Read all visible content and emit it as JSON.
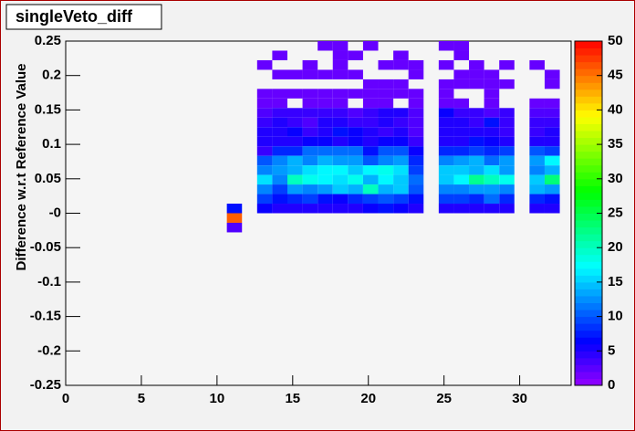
{
  "chart_data": {
    "type": "heatmap",
    "title": "singleVeto_diff",
    "y_label": "Difference w.r.t Reference Value",
    "xlim": [
      0,
      33.4
    ],
    "xticks": [
      0,
      5,
      10,
      15,
      20,
      25,
      30
    ],
    "ylim": [
      -0.25,
      0.25
    ],
    "yticks": [
      -0.25,
      -0.2,
      -0.15,
      -0.1,
      -0.05,
      {
        "value": 0,
        "label": "-0"
      },
      0.05,
      0.1,
      0.15,
      0.2,
      0.25
    ],
    "zlim": [
      0,
      50
    ],
    "zticks": [
      0,
      5,
      10,
      15,
      20,
      25,
      30,
      35,
      40,
      45,
      50
    ],
    "xbins": [
      10.65,
      11.65,
      12.65,
      13.65,
      14.65,
      15.65,
      16.65,
      17.65,
      18.65,
      19.65,
      20.65,
      21.65,
      22.65,
      23.65,
      24.65,
      25.65,
      26.65,
      27.65,
      28.65,
      29.65,
      30.65,
      31.65,
      32.65
    ],
    "ybins": [
      0.25,
      0.2361,
      0.2222,
      0.2083,
      0.1944,
      0.1806,
      0.1667,
      0.1528,
      0.1389,
      0.125,
      0.1111,
      0.0972,
      0.0833,
      0.0694,
      0.0556,
      0.0417,
      0.0278,
      0.0139,
      0,
      -0.0139,
      -0.0278
    ],
    "z": [
      [
        null,
        null,
        null,
        null,
        null,
        null,
        2,
        2,
        null,
        2,
        null,
        null,
        null,
        null,
        2,
        2,
        null,
        null,
        null,
        null,
        null,
        null
      ],
      [
        null,
        null,
        null,
        2,
        null,
        null,
        null,
        2,
        2,
        null,
        null,
        2,
        null,
        null,
        null,
        2,
        null,
        null,
        null,
        null,
        null,
        null
      ],
      [
        null,
        null,
        2,
        null,
        null,
        2,
        null,
        2,
        null,
        null,
        2,
        2,
        2,
        null,
        2,
        null,
        2,
        null,
        2,
        null,
        2,
        null
      ],
      [
        null,
        null,
        null,
        2,
        2,
        2,
        2,
        2,
        2,
        null,
        null,
        null,
        2,
        null,
        null,
        2,
        2,
        2,
        null,
        null,
        null,
        2
      ],
      [
        null,
        null,
        null,
        null,
        null,
        null,
        null,
        null,
        null,
        2,
        2,
        2,
        null,
        null,
        2,
        2,
        2,
        2,
        2,
        null,
        null,
        2
      ],
      [
        null,
        null,
        2,
        2,
        2,
        2,
        2,
        2,
        2,
        2,
        2,
        2,
        2,
        null,
        2,
        null,
        null,
        2,
        null,
        null,
        null,
        null
      ],
      [
        null,
        null,
        2,
        2,
        null,
        2,
        2,
        2,
        null,
        2,
        2,
        null,
        2,
        null,
        2,
        2,
        null,
        2,
        null,
        null,
        2,
        2
      ],
      [
        null,
        null,
        3,
        4,
        4,
        4,
        4,
        4,
        3,
        4,
        5,
        5,
        3,
        null,
        6,
        4,
        4,
        3,
        4,
        null,
        3,
        3
      ],
      [
        null,
        null,
        4,
        5,
        4,
        3,
        5,
        5,
        4,
        4,
        5,
        4,
        3,
        null,
        5,
        5,
        4,
        7,
        4,
        null,
        4,
        4
      ],
      [
        null,
        null,
        5,
        5,
        6,
        4,
        5,
        7,
        6,
        5,
        4,
        5,
        3,
        null,
        5,
        5,
        5,
        5,
        4,
        null,
        4,
        5
      ],
      [
        null,
        null,
        5,
        5,
        5,
        6,
        6,
        5,
        6,
        5,
        6,
        6,
        4,
        null,
        5,
        5,
        7,
        6,
        5,
        null,
        5,
        5
      ],
      [
        null,
        null,
        4,
        8,
        8,
        11,
        11,
        11,
        11,
        7,
        10,
        10,
        6,
        null,
        8,
        8,
        9,
        8,
        9,
        null,
        10,
        9
      ],
      [
        null,
        null,
        10,
        12,
        14,
        12,
        14,
        13,
        13,
        10,
        12,
        13,
        8,
        null,
        12,
        13,
        14,
        11,
        13,
        null,
        13,
        17
      ],
      [
        null,
        null,
        12,
        13,
        14,
        16,
        17,
        17,
        15,
        17,
        18,
        16,
        9,
        null,
        15,
        15,
        14,
        16,
        13,
        null,
        12,
        14
      ],
      [
        null,
        null,
        16,
        12,
        20,
        18,
        17,
        16,
        18,
        14,
        17,
        15,
        11,
        null,
        15,
        17,
        22,
        20,
        18,
        null,
        15,
        23
      ],
      [
        null,
        null,
        12,
        9,
        13,
        12,
        13,
        15,
        14,
        20,
        14,
        15,
        10,
        null,
        12,
        12,
        13,
        13,
        12,
        null,
        14,
        13
      ],
      [
        null,
        null,
        9,
        7,
        8,
        9,
        7,
        6,
        8,
        9,
        10,
        9,
        7,
        null,
        9,
        9,
        8,
        11,
        8,
        null,
        8,
        7
      ],
      [
        7,
        null,
        6,
        5,
        5,
        5,
        5,
        5,
        5,
        6,
        7,
        6,
        5,
        null,
        5,
        5,
        5,
        5,
        5,
        null,
        5,
        5
      ],
      [
        46,
        null,
        null,
        null,
        null,
        null,
        null,
        null,
        null,
        null,
        null,
        null,
        null,
        null,
        null,
        null,
        null,
        null,
        null,
        null,
        null,
        null
      ],
      [
        3,
        null,
        null,
        null,
        null,
        null,
        null,
        null,
        null,
        null,
        null,
        null,
        null,
        null,
        null,
        null,
        null,
        null,
        null,
        null,
        null,
        null
      ]
    ]
  }
}
